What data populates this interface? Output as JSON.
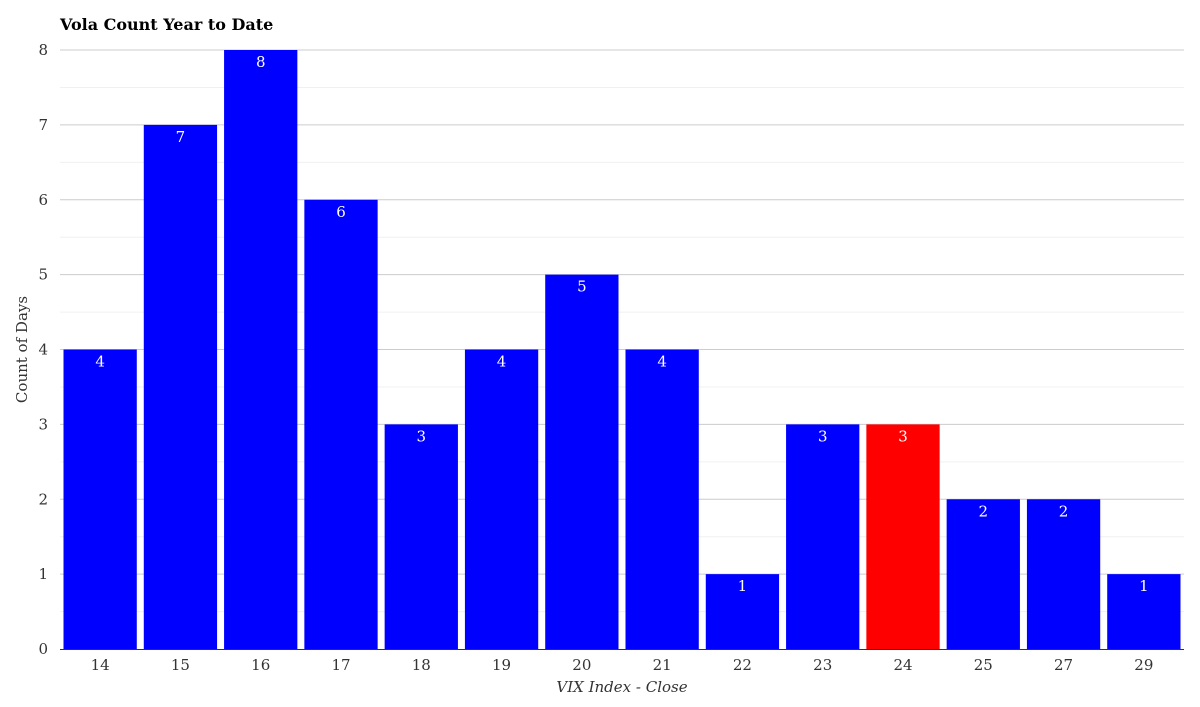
{
  "chart_data": {
    "type": "bar",
    "title": "Vola Count Year to Date",
    "xlabel": "VIX Index - Close",
    "ylabel": "Count of Days",
    "categories": [
      "14",
      "15",
      "16",
      "17",
      "18",
      "19",
      "20",
      "21",
      "22",
      "23",
      "24",
      "25",
      "27",
      "29"
    ],
    "values": [
      4,
      7,
      8,
      6,
      3,
      4,
      5,
      4,
      1,
      3,
      3,
      2,
      2,
      1
    ],
    "ylim": [
      0,
      8
    ],
    "yticks": [
      0,
      1,
      2,
      3,
      4,
      5,
      6,
      7,
      8
    ],
    "highlight_index": 10,
    "bar_color": "#0000ff",
    "highlight_color": "#ff0000",
    "grid": true,
    "legend": "none"
  }
}
